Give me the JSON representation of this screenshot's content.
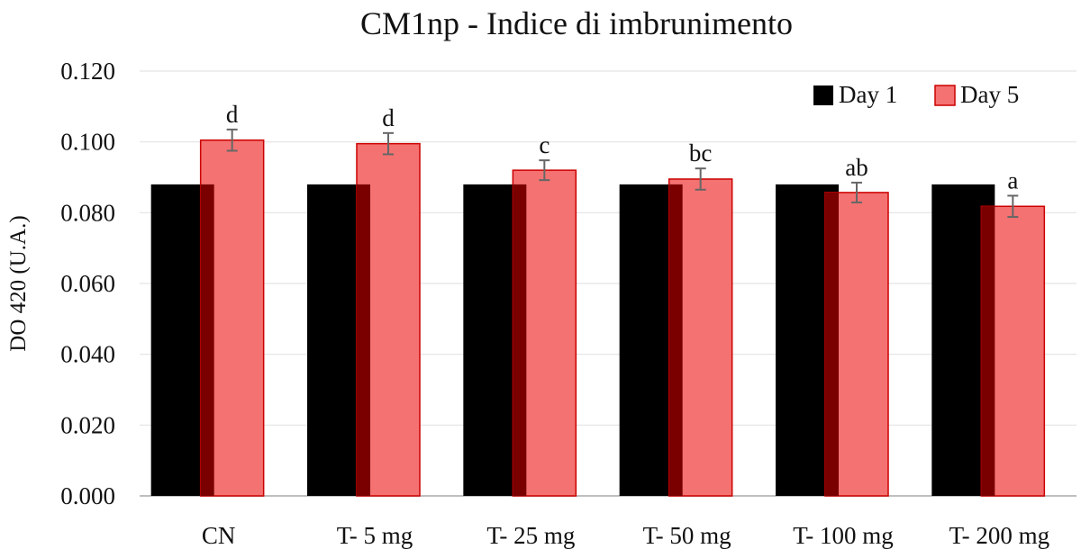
{
  "chart_data": {
    "type": "bar",
    "title": "CM1np - Indice di imbrunimento",
    "ylabel": "DO 420 (U.A.)",
    "xlabel": "",
    "categories": [
      "CN",
      "T- 5 mg",
      "T- 25 mg",
      "T- 50 mg",
      "T- 100 mg",
      "T- 200 mg"
    ],
    "series": [
      {
        "name": "Day 1",
        "values": [
          0.088,
          0.088,
          0.088,
          0.088,
          0.088,
          0.088
        ],
        "color": "#000000"
      },
      {
        "name": "Day 5",
        "values": [
          0.1005,
          0.0995,
          0.092,
          0.0895,
          0.0857,
          0.0818
        ],
        "errors": [
          0.003,
          0.003,
          0.0028,
          0.003,
          0.0028,
          0.003
        ],
        "letters": [
          "d",
          "d",
          "c",
          "bc",
          "ab",
          "a"
        ],
        "color": "#f47272",
        "edge_color": "#cc0000",
        "overlap_color": "#7a0000"
      }
    ],
    "ylim": [
      0,
      0.12
    ],
    "yticks": [
      "0.000",
      "0.020",
      "0.040",
      "0.060",
      "0.080",
      "0.100",
      "0.120"
    ],
    "grid": true,
    "legend": "top-right"
  }
}
